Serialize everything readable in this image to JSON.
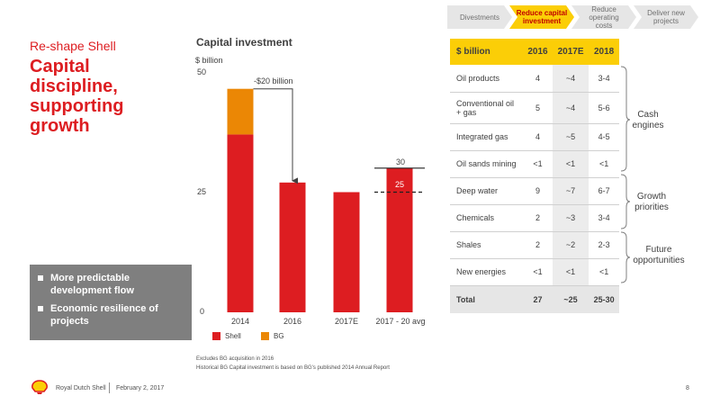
{
  "nav": {
    "steps": [
      {
        "label": "Divestments",
        "active": false
      },
      {
        "label": "Reduce capital investment",
        "active": true
      },
      {
        "label": "Reduce operating costs",
        "active": false
      },
      {
        "label": "Deliver new projects",
        "active": false
      }
    ]
  },
  "header": {
    "kicker": "Re-shape Shell",
    "headline": "Capital discipline, supporting growth"
  },
  "bullets": [
    "More predictable development flow",
    "Economic resilience of projects"
  ],
  "chart": {
    "title": "Capital investment",
    "unit": "$ billion",
    "annotation": "-$20 billion",
    "label_30": "30",
    "label_25": "25",
    "legend": [
      "Shell",
      "BG"
    ],
    "footnotes": [
      "Excludes BG acquisition in 2016",
      "Historical BG Capital investment is based on BG's published 2014 Annual Report"
    ]
  },
  "chart_data": {
    "type": "bar",
    "categories": [
      "2014",
      "2016",
      "2017E",
      "2017 - 20 avg"
    ],
    "series": [
      {
        "name": "Shell",
        "values": [
          37,
          27,
          25,
          30
        ],
        "color": "#dd1d21"
      },
      {
        "name": "BG",
        "values": [
          9.5,
          0,
          0,
          0
        ],
        "color": "#eb8705"
      }
    ],
    "range_marker": {
      "category": "2017 - 20 avg",
      "low": 25,
      "high": 30
    },
    "ylim": [
      0,
      50
    ],
    "yticks": [
      0,
      25,
      50
    ],
    "title": "Capital investment",
    "ylabel": "$ billion",
    "legend_position": "bottom-left"
  },
  "table": {
    "headers": [
      "$ billion",
      "2016",
      "2017E",
      "2018"
    ],
    "rows": [
      {
        "label": "Oil products",
        "values": [
          "4",
          "~4",
          "3-4"
        ]
      },
      {
        "label": "Conventional oil + gas",
        "values": [
          "5",
          "~4",
          "5-6"
        ]
      },
      {
        "label": "Integrated gas",
        "values": [
          "4",
          "~5",
          "4-5"
        ]
      },
      {
        "label": "Oil sands mining",
        "values": [
          "<1",
          "<1",
          "<1"
        ]
      },
      {
        "label": "Deep water",
        "values": [
          "9",
          "~7",
          "6-7"
        ]
      },
      {
        "label": "Chemicals",
        "values": [
          "2",
          "~3",
          "3-4"
        ]
      },
      {
        "label": "Shales",
        "values": [
          "2",
          "~2",
          "2-3"
        ]
      },
      {
        "label": "New energies",
        "values": [
          "<1",
          "<1",
          "<1"
        ]
      }
    ],
    "total": {
      "label": "Total",
      "values": [
        "27",
        "~25",
        "25-30"
      ]
    }
  },
  "groups": [
    "Cash engines",
    "Growth priorities",
    "Future opportunities"
  ],
  "footer": {
    "company": "Royal Dutch Shell",
    "date": "February 2, 2017",
    "page": "8"
  },
  "colors": {
    "shell_red": "#dd1d21",
    "shell_yellow": "#fbce07",
    "bg_orange": "#eb8705",
    "grey_box": "#7f7f7f"
  }
}
